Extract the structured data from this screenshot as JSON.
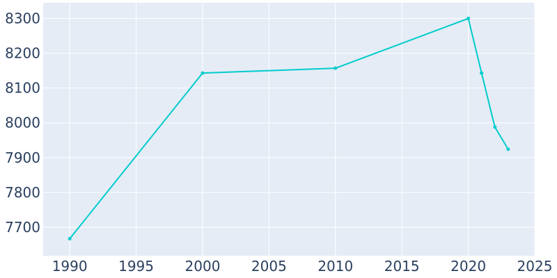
{
  "chart_data": {
    "type": "line",
    "title": "",
    "xlabel": "",
    "ylabel": "",
    "x": [
      1990,
      2000,
      2010,
      2020,
      2021,
      2022,
      2023
    ],
    "series": [
      {
        "values": [
          7667,
          8143,
          8157,
          8300,
          8143,
          7988,
          7924
        ]
      }
    ],
    "xlim": [
      1988,
      2025
    ],
    "ylim": [
      7618,
      8345
    ],
    "x_ticks": [
      1990,
      1995,
      2000,
      2005,
      2010,
      2015,
      2020,
      2025
    ],
    "y_ticks": [
      7700,
      7800,
      7900,
      8000,
      8100,
      8200,
      8300
    ],
    "x_tick_labels": [
      "1990",
      "1995",
      "2000",
      "2005",
      "2010",
      "2015",
      "2020",
      "2025"
    ],
    "y_tick_labels": [
      "7700",
      "7800",
      "7900",
      "8000",
      "8100",
      "8200",
      "8300"
    ],
    "grid": true,
    "colors": {
      "line": "#00cccc",
      "plot_bg": "#e5ecf6",
      "grid": "#ffffff",
      "tick_text": "#2a3f5f"
    }
  }
}
